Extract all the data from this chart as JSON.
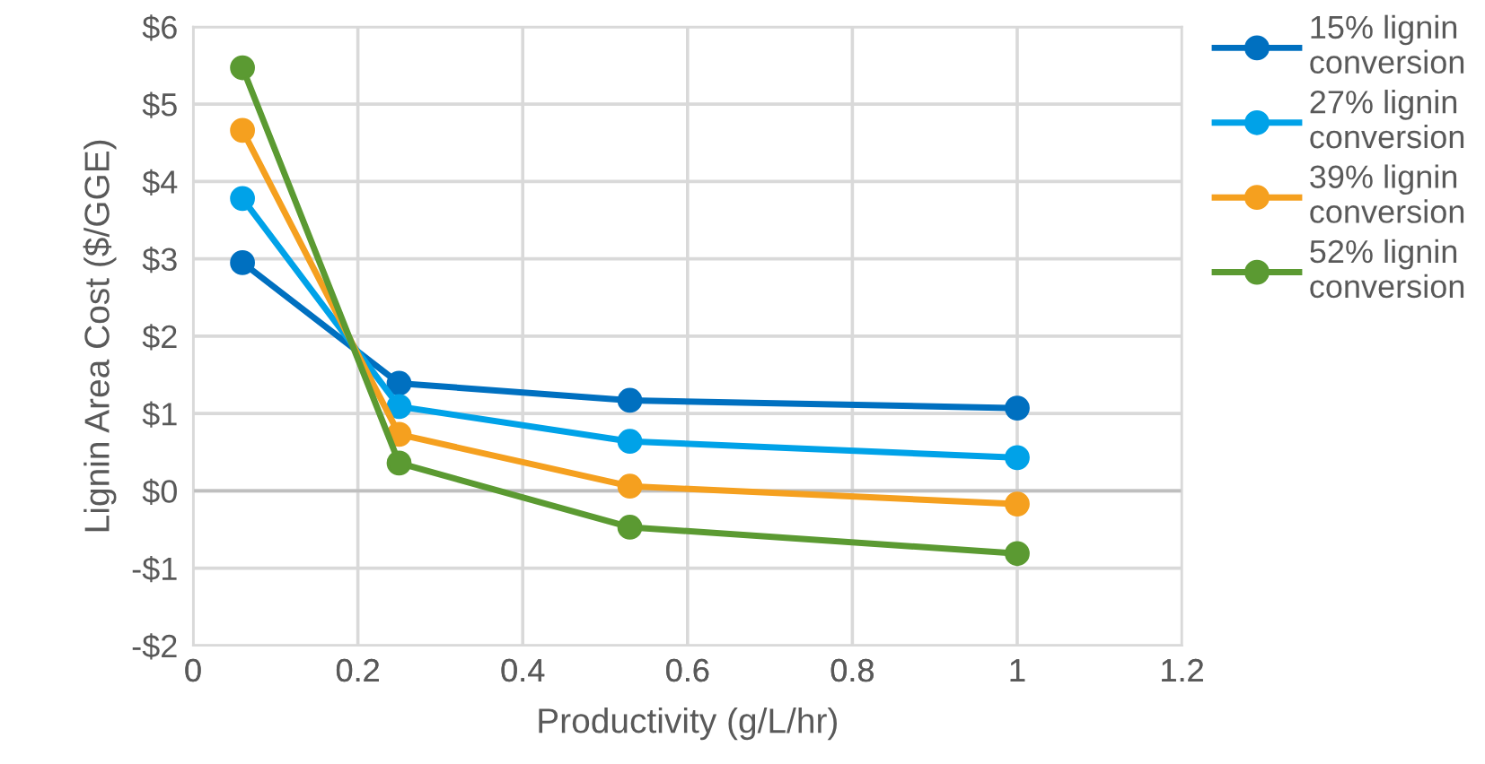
{
  "chart_data": {
    "type": "line",
    "xlabel": "Productivity (g/L/hr)",
    "ylabel": "Lignin Area Cost ($/GGE)",
    "x": [
      0.06,
      0.25,
      0.53,
      1
    ],
    "series": [
      {
        "name": "15% lignin conversion",
        "color": "#0070c0",
        "values": [
          2.95,
          1.39,
          1.17,
          1.07
        ]
      },
      {
        "name": "27% lignin conversion",
        "color": "#00a2e8",
        "values": [
          3.78,
          1.09,
          0.64,
          0.43
        ]
      },
      {
        "name": "39% lignin conversion",
        "color": "#f5a01f",
        "values": [
          4.66,
          0.73,
          0.06,
          -0.17
        ]
      },
      {
        "name": "52% lignin conversion",
        "color": "#5b9a32",
        "values": [
          5.47,
          0.36,
          -0.47,
          -0.81
        ]
      }
    ],
    "xlim": [
      0,
      1.2
    ],
    "xticks": [
      0,
      0.2,
      0.4,
      0.6,
      0.8,
      1,
      1.2
    ],
    "ylim": [
      -2,
      6
    ],
    "yticks": [
      {
        "value": -2,
        "label": "-$2"
      },
      {
        "value": -1,
        "label": "-$1"
      },
      {
        "value": 0,
        "label": "$0"
      },
      {
        "value": 1,
        "label": "$1"
      },
      {
        "value": 2,
        "label": "$2"
      },
      {
        "value": 3,
        "label": "$3"
      },
      {
        "value": 4,
        "label": "$4"
      },
      {
        "value": 5,
        "label": "$5"
      },
      {
        "value": 6,
        "label": "$6"
      }
    ],
    "grid": true,
    "legend": "right",
    "marker": "circle",
    "line_style": "solid"
  }
}
